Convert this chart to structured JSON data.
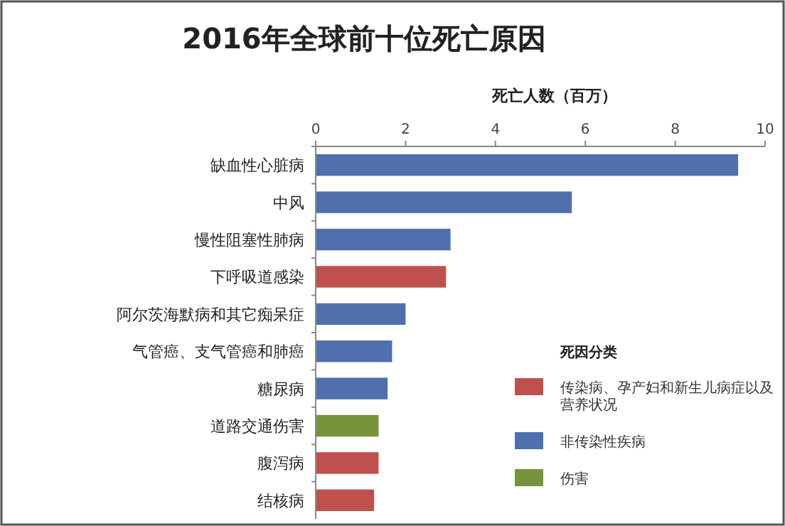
{
  "chart_data": {
    "type": "bar",
    "orientation": "horizontal",
    "title": "2016年全球前十位死亡原因",
    "xlabel": "死亡人数（百万）",
    "legend_title": "死因分类",
    "legend": "bottom right",
    "categories": [
      "缺血性心脏病",
      "中风",
      "慢性阻塞性肺病",
      "下呼吸道感染",
      "阿尔茨海默病和其它痴呆症",
      "气管癌、支气管癌和肺癌",
      "糖尿病",
      "道路交通伤害",
      "腹泻病",
      "结核病"
    ],
    "series": [
      {
        "name": "传染病、孕产妇和新生儿病症以及营养状况",
        "color": "#c0504d",
        "values": [
          null,
          null,
          null,
          2.9,
          null,
          null,
          null,
          null,
          1.4,
          1.3
        ]
      },
      {
        "name": "非传染性疾病",
        "color": "#4f6fad",
        "values": [
          9.4,
          5.7,
          3.0,
          null,
          2.0,
          1.7,
          1.6,
          null,
          null,
          null
        ]
      },
      {
        "name": "伤害",
        "color": "#77933c",
        "values": [
          null,
          null,
          null,
          null,
          null,
          null,
          null,
          1.4,
          null,
          null
        ]
      }
    ],
    "xlim": [
      0,
      10
    ],
    "xticks": [
      0,
      2,
      4,
      6,
      8,
      10
    ]
  }
}
